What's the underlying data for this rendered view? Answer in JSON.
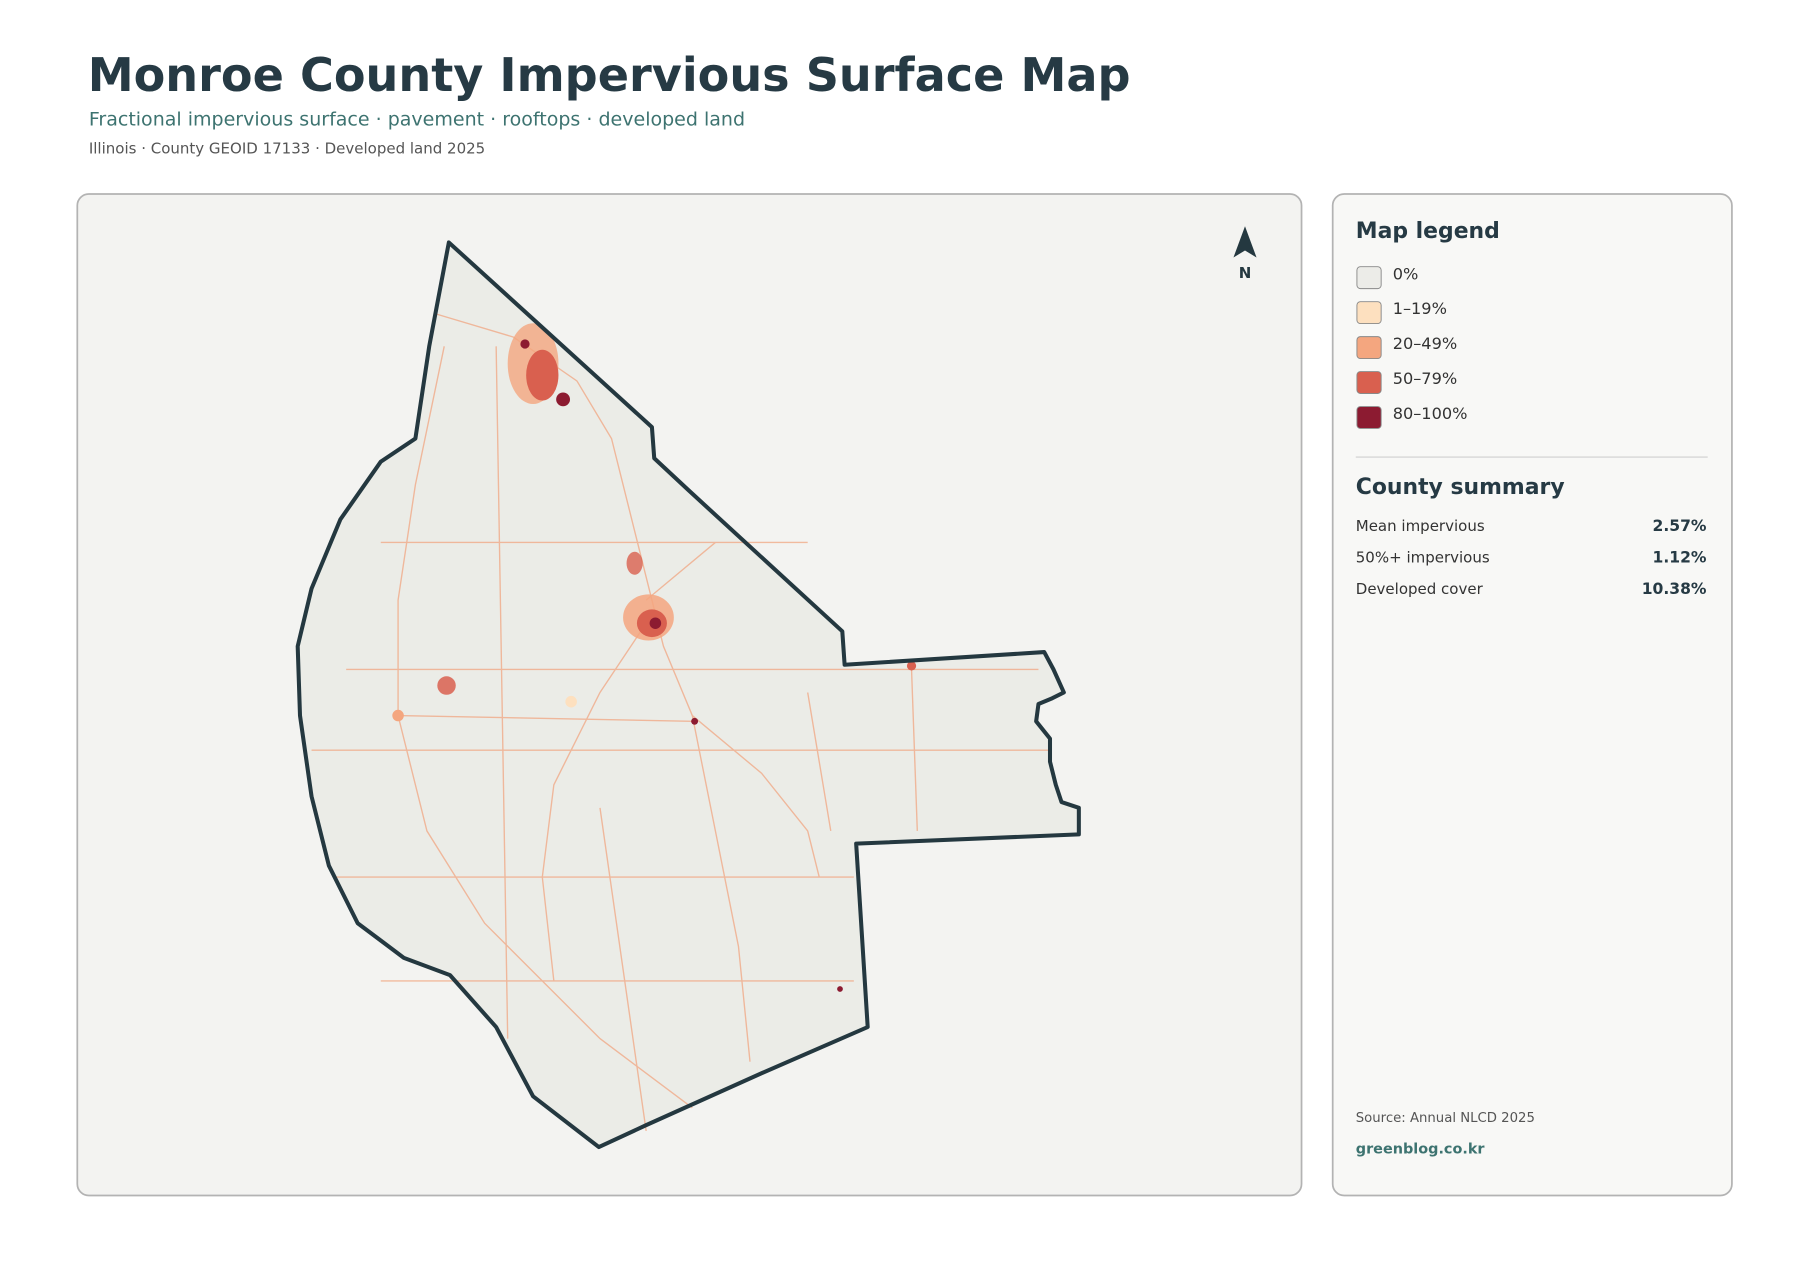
{
  "header": {
    "title": "Monroe County Impervious Surface Map",
    "subtitle": "Fractional impervious surface · pavement · rooftops · developed land",
    "meta": "Illinois · County GEOID 17133 · Developed land 2025"
  },
  "map": {
    "north_label": "N"
  },
  "legend": {
    "title": "Map legend",
    "items": [
      {
        "label": "0%",
        "color": "#ececE8"
      },
      {
        "label": "1–19%",
        "color": "#fde0bf"
      },
      {
        "label": "20–49%",
        "color": "#f4a67f"
      },
      {
        "label": "50–79%",
        "color": "#d9604f"
      },
      {
        "label": "80–100%",
        "color": "#8c1b31"
      }
    ]
  },
  "summary": {
    "title": "County summary",
    "rows": [
      {
        "label": "Mean impervious",
        "value": "2.57%"
      },
      {
        "label": "50%+ impervious",
        "value": "1.12%"
      },
      {
        "label": "Developed cover",
        "value": "10.38%"
      }
    ]
  },
  "footer": {
    "source": "Source: Annual NLCD 2025",
    "site": "greenblog.co.kr"
  }
}
